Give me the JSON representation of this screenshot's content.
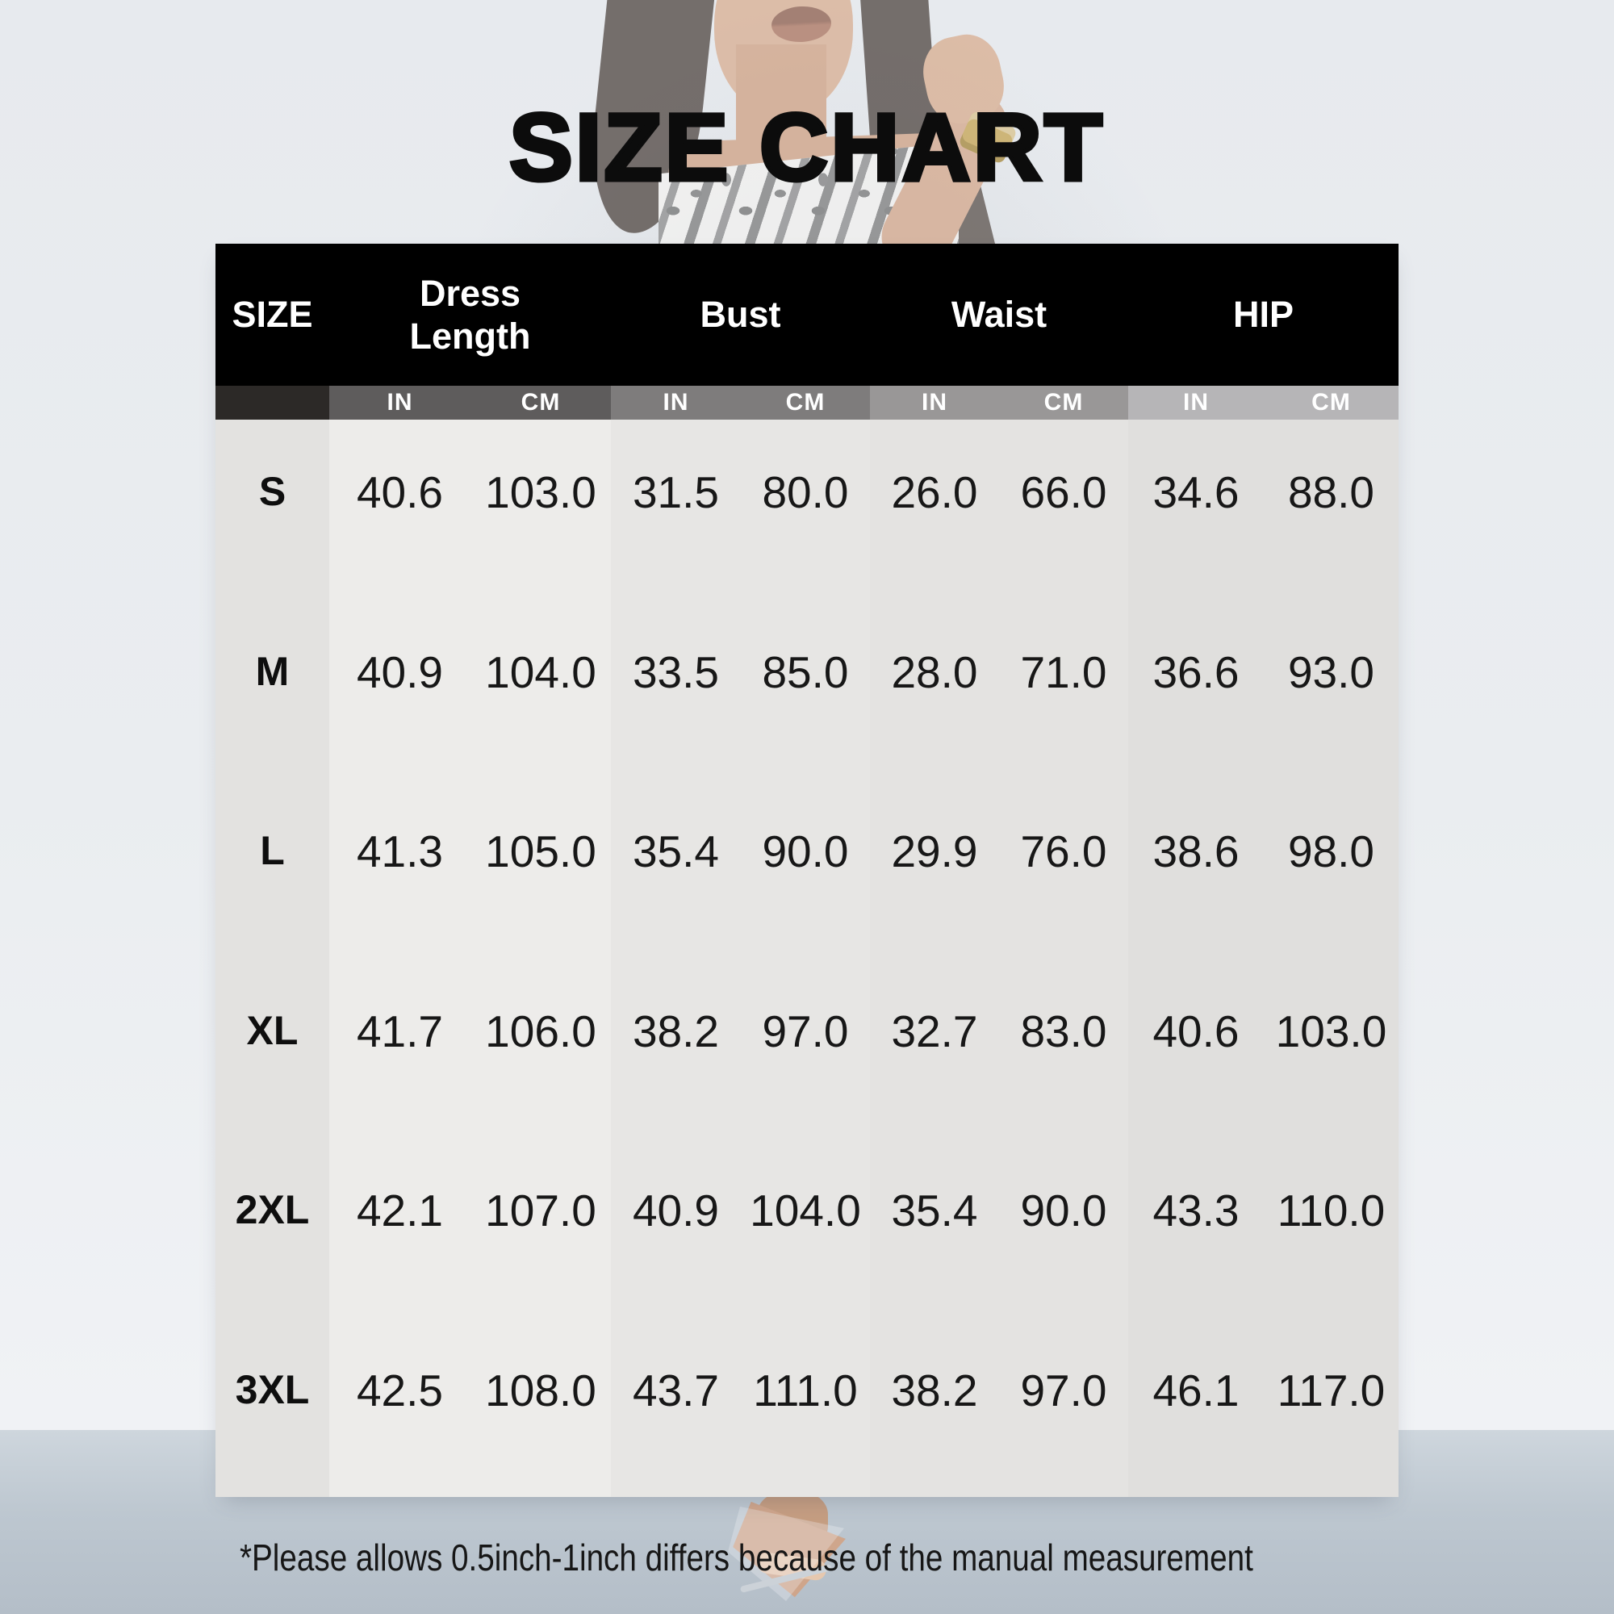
{
  "page": {
    "title": "SIZE CHART",
    "footnote": "*Please allows 0.5inch-1inch differs because of the manual measurement"
  },
  "table": {
    "size_column_header": "SIZE",
    "unit_in": "IN",
    "unit_cm": "CM",
    "groups": [
      {
        "label": "Dress Length"
      },
      {
        "label": "Bust"
      },
      {
        "label": "Waist"
      },
      {
        "label": "HIP"
      }
    ],
    "rows": [
      {
        "size": "S",
        "values": [
          "40.6",
          "103.0",
          "31.5",
          "80.0",
          "26.0",
          "66.0",
          "34.6",
          "88.0"
        ]
      },
      {
        "size": "M",
        "values": [
          "40.9",
          "104.0",
          "33.5",
          "85.0",
          "28.0",
          "71.0",
          "36.6",
          "93.0"
        ]
      },
      {
        "size": "L",
        "values": [
          "41.3",
          "105.0",
          "35.4",
          "90.0",
          "29.9",
          "76.0",
          "38.6",
          "98.0"
        ]
      },
      {
        "size": "XL",
        "values": [
          "41.7",
          "106.0",
          "38.2",
          "97.0",
          "32.7",
          "83.0",
          "40.6",
          "103.0"
        ]
      },
      {
        "size": "2XL",
        "values": [
          "42.1",
          "107.0",
          "40.9",
          "104.0",
          "35.4",
          "90.0",
          "43.3",
          "110.0"
        ]
      },
      {
        "size": "3XL",
        "values": [
          "42.5",
          "108.0",
          "43.7",
          "111.0",
          "38.2",
          "97.0",
          "46.1",
          "117.0"
        ]
      }
    ]
  },
  "chart_data": {
    "type": "table",
    "title": "SIZE CHART",
    "columns": [
      "SIZE",
      "Dress Length IN",
      "Dress Length CM",
      "Bust IN",
      "Bust CM",
      "Waist IN",
      "Waist CM",
      "HIP IN",
      "HIP CM"
    ],
    "rows": [
      [
        "S",
        "40.6",
        "103.0",
        "31.5",
        "80.0",
        "26.0",
        "66.0",
        "34.6",
        "88.0"
      ],
      [
        "M",
        "40.9",
        "104.0",
        "33.5",
        "85.0",
        "28.0",
        "71.0",
        "36.6",
        "93.0"
      ],
      [
        "L",
        "41.3",
        "105.0",
        "35.4",
        "90.0",
        "29.9",
        "76.0",
        "38.6",
        "98.0"
      ],
      [
        "XL",
        "41.7",
        "106.0",
        "38.2",
        "97.0",
        "32.7",
        "83.0",
        "40.6",
        "103.0"
      ],
      [
        "2XL",
        "42.1",
        "107.0",
        "40.9",
        "104.0",
        "35.4",
        "90.0",
        "43.3",
        "110.0"
      ],
      [
        "3XL",
        "42.5",
        "108.0",
        "43.7",
        "111.0",
        "38.2",
        "97.0",
        "46.1",
        "117.0"
      ]
    ],
    "footnote": "*Please allows 0.5inch-1inch differs because of the manual measurement"
  },
  "colors": {
    "header_bg": "#000000",
    "header_text": "#ffffff",
    "subheader_size": "#2c2927",
    "subheader_dress_length": "#5e5c5c",
    "subheader_bust": "#7e7c7c",
    "subheader_waist": "#999797",
    "subheader_hip": "#b6b5b7",
    "title_text": "#0c0c0c",
    "wall_background": "#eaedf0",
    "floor_background": "#b9c3cd"
  }
}
